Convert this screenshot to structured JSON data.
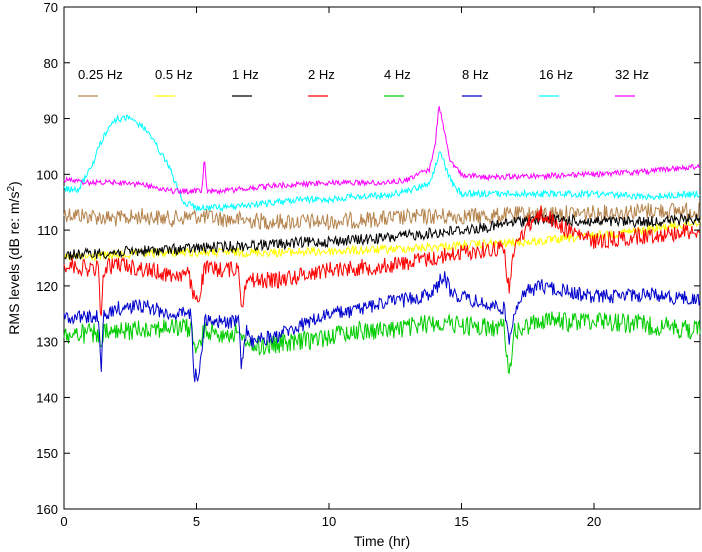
{
  "chart_data": {
    "type": "line",
    "title": "",
    "xlabel": "Time (hr)",
    "ylabel_main": "RMS levels (dB re: m/s",
    "ylabel_sup": "2",
    "ylabel_end": ")",
    "xlim": [
      0,
      24
    ],
    "ylim": [
      70,
      160
    ],
    "y_inverted": true,
    "grid": false,
    "legend_placement": "top",
    "x_ticks": [
      0,
      5,
      10,
      15,
      20
    ],
    "x_tick_labels": [
      "0",
      "5",
      "10",
      "15",
      "20"
    ],
    "y_ticks": [
      70,
      80,
      90,
      100,
      110,
      120,
      130,
      140,
      150,
      160
    ],
    "y_tick_labels": [
      "70",
      "80",
      "90",
      "100",
      "110",
      "120",
      "130",
      "140",
      "150",
      "160"
    ],
    "series": [
      {
        "name": "0.25 Hz",
        "color": "#b5834c",
        "noise": 1.5,
        "points": [
          [
            0,
            107
          ],
          [
            1,
            107.5
          ],
          [
            2,
            108
          ],
          [
            3,
            107.5
          ],
          [
            4,
            108
          ],
          [
            5,
            107.5
          ],
          [
            6,
            108
          ],
          [
            8,
            108.5
          ],
          [
            10,
            108.5
          ],
          [
            12,
            108
          ],
          [
            14,
            107.5
          ],
          [
            16,
            107.5
          ],
          [
            18,
            107
          ],
          [
            20,
            107
          ],
          [
            22,
            106.5
          ],
          [
            24,
            106.5
          ]
        ]
      },
      {
        "name": "0.5 Hz",
        "color": "#ffff00",
        "noise": 0.8,
        "points": [
          [
            0,
            115
          ],
          [
            2,
            114.5
          ],
          [
            4,
            114
          ],
          [
            6,
            114
          ],
          [
            8,
            114
          ],
          [
            10,
            113.8
          ],
          [
            12,
            113.5
          ],
          [
            14,
            113
          ],
          [
            16,
            112.5
          ],
          [
            18,
            112
          ],
          [
            20,
            111
          ],
          [
            22,
            110
          ],
          [
            24,
            108.5
          ]
        ]
      },
      {
        "name": "1 Hz",
        "color": "#000000",
        "noise": 1.0,
        "points": [
          [
            0,
            114.5
          ],
          [
            2,
            114
          ],
          [
            4,
            113.5
          ],
          [
            6,
            113
          ],
          [
            8,
            112.5
          ],
          [
            10,
            112
          ],
          [
            12,
            111.5
          ],
          [
            14,
            110.5
          ],
          [
            16,
            109.5
          ],
          [
            17,
            108.5
          ],
          [
            18,
            108
          ],
          [
            20,
            108.5
          ],
          [
            22,
            108.5
          ],
          [
            24,
            108
          ]
        ]
      },
      {
        "name": "2 Hz",
        "color": "#ff0000",
        "noise": 1.5,
        "points": [
          [
            0,
            116
          ],
          [
            1,
            117
          ],
          [
            1.3,
            117
          ],
          [
            1.4,
            126
          ],
          [
            1.5,
            117
          ],
          [
            2,
            116
          ],
          [
            3,
            117
          ],
          [
            4,
            118
          ],
          [
            4.7,
            118
          ],
          [
            4.9,
            122
          ],
          [
            5.1,
            122
          ],
          [
            5.3,
            117
          ],
          [
            6,
            117
          ],
          [
            6.6,
            117
          ],
          [
            6.7,
            124
          ],
          [
            6.9,
            118
          ],
          [
            7,
            119
          ],
          [
            8,
            119
          ],
          [
            9,
            118
          ],
          [
            10,
            117
          ],
          [
            12,
            116.5
          ],
          [
            14,
            115
          ],
          [
            15,
            114
          ],
          [
            16,
            113.5
          ],
          [
            16.6,
            113
          ],
          [
            16.8,
            121
          ],
          [
            17,
            113
          ],
          [
            17.5,
            109
          ],
          [
            18,
            107
          ],
          [
            19,
            110
          ],
          [
            20,
            112
          ],
          [
            22,
            111
          ],
          [
            24,
            110
          ]
        ]
      },
      {
        "name": "4 Hz",
        "color": "#00cc00",
        "noise": 1.8,
        "points": [
          [
            0,
            129
          ],
          [
            1,
            128.5
          ],
          [
            1.3,
            128.5
          ],
          [
            1.4,
            132
          ],
          [
            1.5,
            128.5
          ],
          [
            2,
            128.5
          ],
          [
            3,
            127.5
          ],
          [
            4,
            127.5
          ],
          [
            4.8,
            127.5
          ],
          [
            4.9,
            131
          ],
          [
            5.1,
            131
          ],
          [
            5.3,
            128
          ],
          [
            6,
            128.5
          ],
          [
            6.5,
            128.5
          ],
          [
            6.7,
            130
          ],
          [
            6.9,
            129
          ],
          [
            7,
            131
          ],
          [
            8,
            130.5
          ],
          [
            9,
            130
          ],
          [
            10,
            129
          ],
          [
            11,
            128
          ],
          [
            12,
            128
          ],
          [
            13,
            127.5
          ],
          [
            14,
            126.5
          ],
          [
            15,
            127
          ],
          [
            16,
            127.5
          ],
          [
            16.6,
            127.5
          ],
          [
            16.8,
            135
          ],
          [
            17,
            128.5
          ],
          [
            18,
            126
          ],
          [
            19,
            126.5
          ],
          [
            20,
            126
          ],
          [
            22,
            127
          ],
          [
            24,
            128
          ]
        ]
      },
      {
        "name": "8 Hz",
        "color": "#0000cc",
        "noise": 1.3,
        "points": [
          [
            0,
            125.5
          ],
          [
            1,
            125.5
          ],
          [
            1.3,
            125.5
          ],
          [
            1.4,
            135.5
          ],
          [
            1.5,
            125.5
          ],
          [
            2,
            124
          ],
          [
            3,
            123.5
          ],
          [
            4,
            125
          ],
          [
            4.8,
            125
          ],
          [
            4.9,
            136
          ],
          [
            5.1,
            136
          ],
          [
            5.3,
            126
          ],
          [
            6,
            126.5
          ],
          [
            6.6,
            126.5
          ],
          [
            6.7,
            135
          ],
          [
            6.9,
            127
          ],
          [
            7,
            130
          ],
          [
            8,
            129
          ],
          [
            9,
            127
          ],
          [
            10,
            125
          ],
          [
            11,
            124.5
          ],
          [
            12,
            123
          ],
          [
            13,
            122.5
          ],
          [
            14,
            121
          ],
          [
            14.3,
            118
          ],
          [
            14.6,
            121
          ],
          [
            15,
            122
          ],
          [
            16,
            123.5
          ],
          [
            16.6,
            124
          ],
          [
            16.8,
            130
          ],
          [
            17,
            124
          ],
          [
            17.5,
            121
          ],
          [
            18,
            120
          ],
          [
            19,
            121
          ],
          [
            20,
            122
          ],
          [
            22,
            121.5
          ],
          [
            24,
            122.5
          ]
        ]
      },
      {
        "name": "16 Hz",
        "color": "#00ffff",
        "noise": 0.6,
        "points": [
          [
            0,
            102.5
          ],
          [
            0.5,
            103
          ],
          [
            1,
            99
          ],
          [
            1.5,
            93
          ],
          [
            2,
            90
          ],
          [
            2.5,
            90
          ],
          [
            3,
            91.5
          ],
          [
            3.5,
            95
          ],
          [
            4,
            99
          ],
          [
            4.5,
            105
          ],
          [
            5,
            106
          ],
          [
            6,
            106
          ],
          [
            7,
            105.5
          ],
          [
            8,
            105
          ],
          [
            9,
            104.5
          ],
          [
            10,
            104.5
          ],
          [
            11,
            104
          ],
          [
            12,
            103.8
          ],
          [
            13,
            103
          ],
          [
            13.8,
            101.5
          ],
          [
            14,
            99
          ],
          [
            14.2,
            95.5
          ],
          [
            14.4,
            99
          ],
          [
            14.7,
            102
          ],
          [
            15,
            103.5
          ],
          [
            16,
            103.5
          ],
          [
            18,
            103.5
          ],
          [
            20,
            103.5
          ],
          [
            22,
            104
          ],
          [
            24,
            103.5
          ]
        ]
      },
      {
        "name": "32 Hz",
        "color": "#ff00ff",
        "noise": 0.5,
        "points": [
          [
            0,
            101
          ],
          [
            1,
            101.5
          ],
          [
            2,
            101.5
          ],
          [
            3,
            101.8
          ],
          [
            4,
            103
          ],
          [
            5,
            103
          ],
          [
            5.2,
            103
          ],
          [
            5.3,
            97
          ],
          [
            5.4,
            103
          ],
          [
            6,
            103
          ],
          [
            7,
            102.5
          ],
          [
            8,
            102
          ],
          [
            9,
            101.8
          ],
          [
            10,
            101.5
          ],
          [
            11,
            101.5
          ],
          [
            12,
            101.5
          ],
          [
            13,
            101
          ],
          [
            13.8,
            99
          ],
          [
            14,
            95
          ],
          [
            14.15,
            87.5
          ],
          [
            14.3,
            91
          ],
          [
            14.6,
            98
          ],
          [
            15,
            100
          ],
          [
            16,
            100.5
          ],
          [
            18,
            100.3
          ],
          [
            20,
            100
          ],
          [
            22,
            99.5
          ],
          [
            24,
            98.5
          ]
        ]
      }
    ]
  }
}
